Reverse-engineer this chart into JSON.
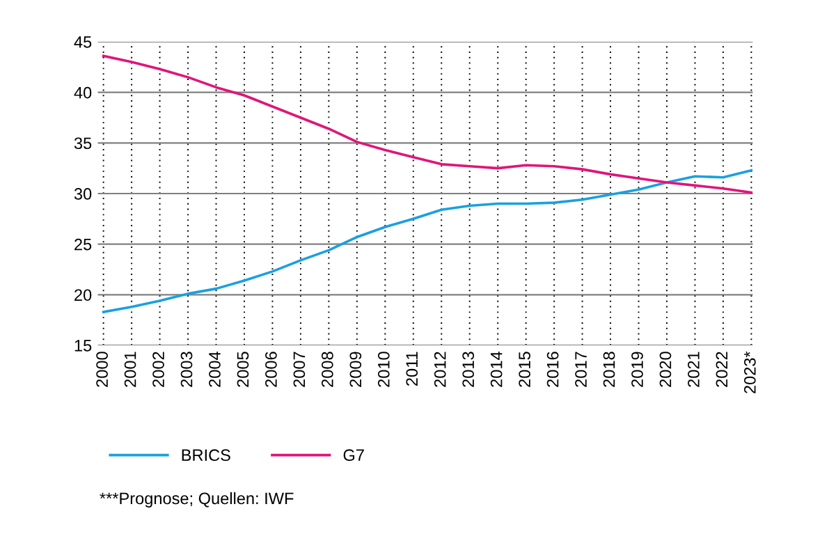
{
  "chart_data": {
    "type": "line",
    "categories": [
      "2000",
      "2001",
      "2002",
      "2003",
      "2004",
      "2005",
      "2006",
      "2007",
      "2008",
      "2009",
      "2010",
      "2011",
      "2012",
      "2013",
      "2014",
      "2015",
      "2016",
      "2017",
      "2018",
      "2019",
      "2020",
      "2021",
      "2022",
      "2023*"
    ],
    "series": [
      {
        "name": "BRICS",
        "color": "#1aa0e0",
        "values": [
          18.3,
          18.8,
          19.4,
          20.1,
          20.6,
          21.4,
          22.3,
          23.4,
          24.4,
          25.7,
          26.7,
          27.5,
          28.4,
          28.8,
          29.0,
          29.0,
          29.1,
          29.4,
          29.9,
          30.4,
          31.1,
          31.7,
          31.6,
          32.3
        ]
      },
      {
        "name": "G7",
        "color": "#e0157a",
        "values": [
          43.6,
          43.0,
          42.3,
          41.5,
          40.5,
          39.7,
          38.6,
          37.5,
          36.4,
          35.1,
          34.3,
          33.6,
          32.9,
          32.7,
          32.5,
          32.8,
          32.7,
          32.4,
          31.9,
          31.5,
          31.1,
          30.8,
          30.5,
          30.1
        ]
      }
    ],
    "ylim": [
      15,
      45
    ],
    "yticks": [
      15,
      20,
      25,
      30,
      35,
      40,
      45
    ],
    "grid": true,
    "legend": "bottom left",
    "marker": "none",
    "line_style": "solid",
    "annotations": [
      "***Prognose; Quellen: IWF"
    ]
  }
}
